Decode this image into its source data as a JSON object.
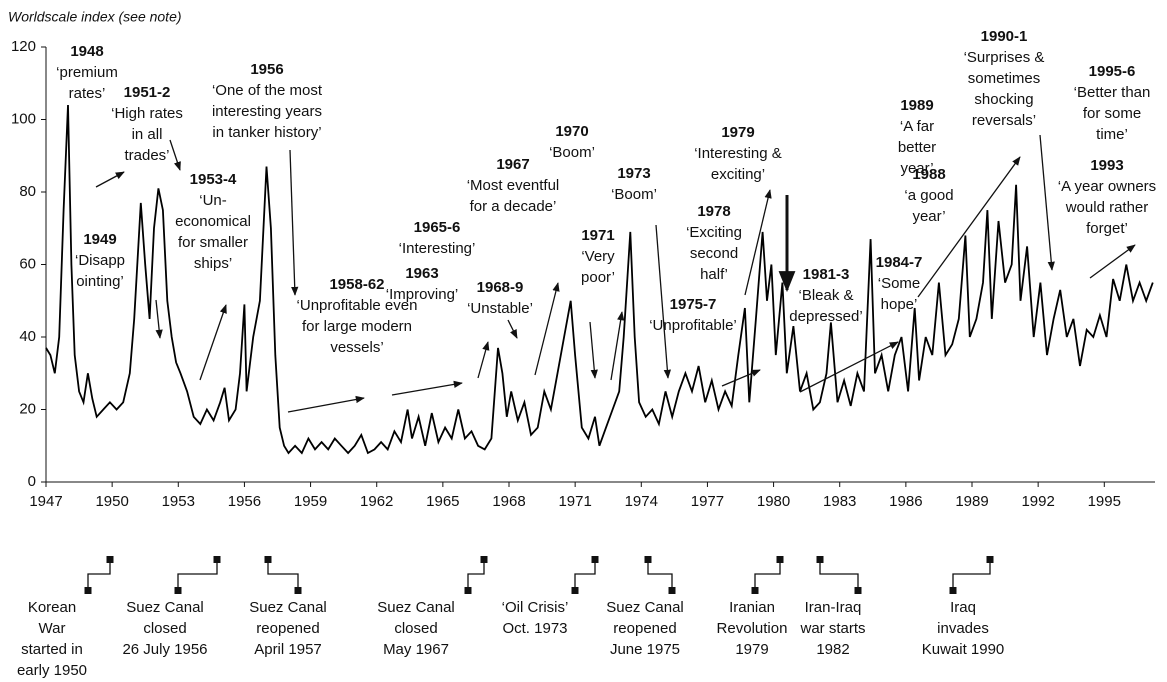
{
  "chart_data": {
    "type": "line",
    "y_axis_label": "Worldscale index (see note)",
    "color": "#000000",
    "xlim": [
      1947,
      1997.3
    ],
    "xticks": [
      1947,
      1950,
      1953,
      1956,
      1959,
      1962,
      1965,
      1968,
      1971,
      1974,
      1977,
      1980,
      1983,
      1986,
      1989,
      1992,
      1995
    ],
    "ylim": [
      0,
      120
    ],
    "yticks": [
      0,
      20,
      40,
      60,
      80,
      100,
      120
    ],
    "x": [
      1947.0,
      1947.2,
      1947.4,
      1947.6,
      1947.8,
      1948.0,
      1948.15,
      1948.3,
      1948.5,
      1948.7,
      1948.9,
      1949.1,
      1949.3,
      1949.6,
      1949.9,
      1950.2,
      1950.5,
      1950.8,
      1951.0,
      1951.3,
      1951.5,
      1951.7,
      1951.9,
      1952.1,
      1952.3,
      1952.5,
      1952.7,
      1952.9,
      1953.1,
      1953.4,
      1953.7,
      1954.0,
      1954.3,
      1954.6,
      1954.9,
      1955.1,
      1955.3,
      1955.6,
      1955.8,
      1956.0,
      1956.1,
      1956.4,
      1956.7,
      1957.0,
      1957.2,
      1957.4,
      1957.6,
      1957.8,
      1958.0,
      1958.3,
      1958.6,
      1958.9,
      1959.2,
      1959.5,
      1959.8,
      1960.1,
      1960.4,
      1960.7,
      1961.0,
      1961.3,
      1961.6,
      1961.9,
      1962.2,
      1962.5,
      1962.8,
      1963.1,
      1963.4,
      1963.6,
      1963.9,
      1964.2,
      1964.5,
      1964.8,
      1965.1,
      1965.4,
      1965.7,
      1966.0,
      1966.3,
      1966.6,
      1966.9,
      1967.2,
      1967.5,
      1967.7,
      1967.9,
      1968.1,
      1968.4,
      1968.7,
      1969.0,
      1969.3,
      1969.6,
      1969.9,
      1970.2,
      1970.5,
      1970.8,
      1971.0,
      1971.3,
      1971.6,
      1971.9,
      1972.1,
      1972.4,
      1972.7,
      1973.0,
      1973.2,
      1973.5,
      1973.7,
      1973.9,
      1974.2,
      1974.5,
      1974.8,
      1975.1,
      1975.4,
      1975.7,
      1976.0,
      1976.3,
      1976.6,
      1976.9,
      1977.2,
      1977.5,
      1977.8,
      1978.1,
      1978.4,
      1978.7,
      1978.9,
      1979.2,
      1979.5,
      1979.7,
      1979.9,
      1980.1,
      1980.4,
      1980.6,
      1980.9,
      1981.2,
      1981.5,
      1981.8,
      1982.1,
      1982.4,
      1982.6,
      1982.9,
      1983.2,
      1983.5,
      1983.8,
      1984.1,
      1984.4,
      1984.6,
      1984.9,
      1985.2,
      1985.5,
      1985.8,
      1986.1,
      1986.4,
      1986.6,
      1986.9,
      1987.2,
      1987.5,
      1987.8,
      1988.1,
      1988.4,
      1988.7,
      1988.9,
      1989.2,
      1989.5,
      1989.7,
      1989.9,
      1990.2,
      1990.5,
      1990.8,
      1991.0,
      1991.2,
      1991.5,
      1991.8,
      1992.1,
      1992.4,
      1992.7,
      1993.0,
      1993.3,
      1993.6,
      1993.9,
      1994.2,
      1994.5,
      1994.8,
      1995.1,
      1995.4,
      1995.7,
      1996.0,
      1996.3,
      1996.6,
      1996.9,
      1997.2
    ],
    "values": [
      37,
      35,
      30,
      40,
      75,
      104,
      60,
      35,
      25,
      22,
      30,
      23,
      18,
      20,
      22,
      20,
      22,
      30,
      45,
      77,
      60,
      45,
      70,
      81,
      75,
      50,
      40,
      33,
      30,
      25,
      18,
      16,
      20,
      17,
      22,
      26,
      17,
      20,
      30,
      49,
      25,
      40,
      50,
      87,
      70,
      35,
      15,
      10,
      8,
      10,
      8,
      12,
      9,
      11,
      9,
      12,
      10,
      8,
      10,
      13,
      8,
      9,
      11,
      9,
      14,
      11,
      20,
      12,
      18,
      10,
      19,
      11,
      15,
      12,
      20,
      12,
      14,
      10,
      9,
      12,
      37,
      30,
      18,
      25,
      17,
      22,
      13,
      15,
      25,
      20,
      30,
      40,
      50,
      35,
      15,
      12,
      18,
      10,
      15,
      20,
      25,
      40,
      69,
      40,
      22,
      18,
      20,
      16,
      25,
      18,
      25,
      30,
      25,
      32,
      22,
      28,
      20,
      25,
      21,
      35,
      48,
      22,
      45,
      69,
      50,
      60,
      35,
      55,
      30,
      43,
      25,
      30,
      20,
      22,
      30,
      44,
      22,
      28,
      21,
      30,
      25,
      67,
      30,
      35,
      25,
      35,
      40,
      25,
      48,
      28,
      40,
      35,
      55,
      35,
      38,
      45,
      68,
      40,
      45,
      55,
      75,
      45,
      72,
      55,
      60,
      82,
      50,
      65,
      40,
      55,
      35,
      45,
      53,
      40,
      45,
      32,
      42,
      40,
      46,
      40,
      56,
      50,
      60,
      50,
      55,
      50,
      55
    ],
    "annotations": [
      {
        "year": "1948",
        "lines": [
          "‘premium",
          "rates’"
        ]
      },
      {
        "year": "1951-2",
        "lines": [
          "‘High rates",
          "in all",
          "trades’"
        ]
      },
      {
        "year": "1949",
        "lines": [
          "‘Disapp",
          "ointing’"
        ]
      },
      {
        "year": "1953-4",
        "lines": [
          "‘Un-",
          "economical",
          "for smaller",
          "ships’"
        ]
      },
      {
        "year": "1956",
        "lines": [
          "‘One of the most",
          "interesting years",
          "in tanker history’"
        ]
      },
      {
        "year": "1958-62",
        "lines": [
          "‘Unprofitable even",
          "for large modern",
          "vessels’"
        ]
      },
      {
        "year": "1965-6",
        "lines": [
          "‘Interesting’"
        ]
      },
      {
        "year": "1963",
        "lines": [
          "‘Improving’"
        ]
      },
      {
        "year": "1967",
        "lines": [
          "‘Most eventful",
          "for a decade’"
        ]
      },
      {
        "year": "1970",
        "lines": [
          "‘Boom’"
        ]
      },
      {
        "year": "1968-9",
        "lines": [
          "‘Unstable’"
        ]
      },
      {
        "year": "1971",
        "lines": [
          "‘Very",
          "poor’"
        ]
      },
      {
        "year": "1973",
        "lines": [
          "‘Boom’"
        ]
      },
      {
        "year": "1975-7",
        "lines": [
          "‘Unprofitable’"
        ]
      },
      {
        "year": "1979",
        "lines": [
          "‘Interesting &",
          "exciting’"
        ]
      },
      {
        "year": "1978",
        "lines": [
          "‘Exciting",
          "second",
          "half’"
        ]
      },
      {
        "year": "1981-3",
        "lines": [
          "‘Bleak &",
          "depressed’"
        ]
      },
      {
        "year": "1984-7",
        "lines": [
          "‘Some",
          "hope’"
        ]
      },
      {
        "year": "1988",
        "lines": [
          "‘a good",
          "year’"
        ]
      },
      {
        "year": "1989",
        "lines": [
          "‘A far",
          "better",
          "year’"
        ]
      },
      {
        "year": "1990-1",
        "lines": [
          "‘Surprises &",
          "sometimes",
          "shocking",
          "reversals’"
        ]
      },
      {
        "year": "1995-6",
        "lines": [
          "‘Better than",
          "for some",
          "time’"
        ]
      },
      {
        "year": "1993",
        "lines": [
          "‘A year owners",
          "would rather",
          "forget’"
        ]
      }
    ],
    "events": [
      {
        "lines": [
          "Korean",
          "War",
          "started in",
          "early 1950"
        ]
      },
      {
        "lines": [
          "Suez Canal",
          "closed",
          "26 July 1956"
        ]
      },
      {
        "lines": [
          "Suez Canal",
          "reopened",
          "April 1957"
        ]
      },
      {
        "lines": [
          "Suez Canal",
          "closed",
          "May 1967"
        ]
      },
      {
        "lines": [
          "‘Oil Crisis’",
          "Oct. 1973"
        ]
      },
      {
        "lines": [
          "Suez Canal",
          "reopened",
          "June 1975"
        ]
      },
      {
        "lines": [
          "Iranian",
          "Revolution",
          "1979"
        ]
      },
      {
        "lines": [
          "Iran-Iraq",
          "war starts",
          "1982"
        ]
      },
      {
        "lines": [
          "Iraq",
          "invades",
          "Kuwait 1990"
        ]
      }
    ]
  }
}
